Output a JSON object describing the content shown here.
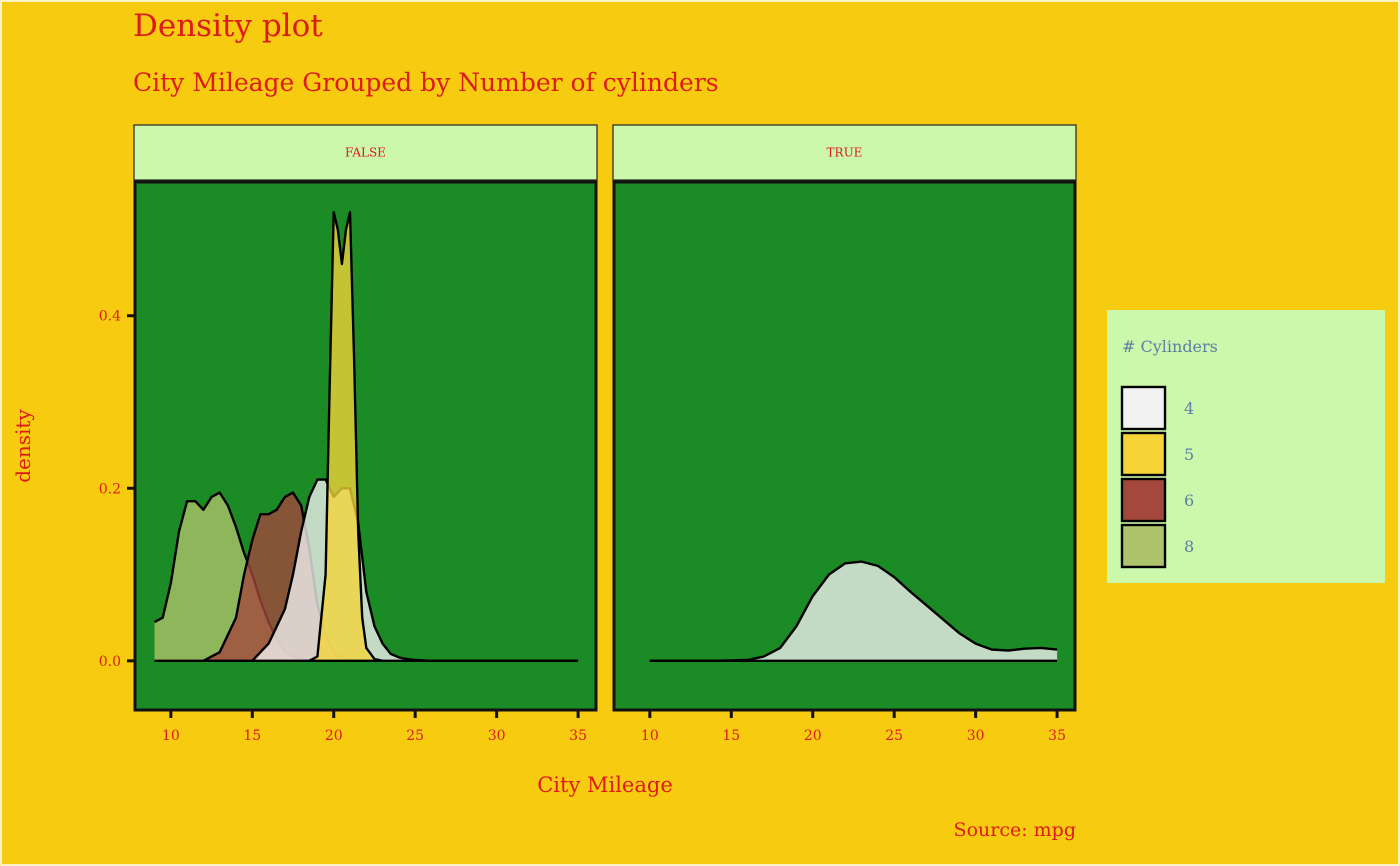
{
  "chart_data": {
    "type": "area",
    "title": "Density plot",
    "subtitle": "City Mileage Grouped by Number of cylinders",
    "caption": "Source: mpg",
    "xlabel": "City Mileage",
    "ylabel": "density",
    "xlim": [
      7.8,
      36.1
    ],
    "ylim": [
      -0.057,
      0.555
    ],
    "x_ticks": [
      10,
      15,
      20,
      25,
      30,
      35
    ],
    "y_ticks": [
      0.0,
      0.2,
      0.4
    ],
    "y_tick_labels": [
      "0.0",
      "0.2",
      "0.4"
    ],
    "legend": {
      "title": "# Cylinders",
      "position": "right",
      "entries": [
        {
          "label": "4",
          "color": "#f2f2f2"
        },
        {
          "label": "5",
          "color": "#f4d437"
        },
        {
          "label": "6",
          "color": "#a4473c"
        },
        {
          "label": "8",
          "color": "#aec46c"
        }
      ]
    },
    "colors": {
      "background": "#f7cb10",
      "panel": "#1b8b25",
      "strip": "#cbf8aa",
      "title_text": "#dd1b1b",
      "legend_text": "#5b7fa8",
      "fill_4": "#f2f2f2",
      "fill_5": "#f4d437",
      "fill_6": "#a4473c",
      "fill_8": "#aec46c"
    },
    "panels": [
      {
        "strip": "FALSE",
        "series": [
          {
            "name": "8",
            "x": [
              9,
              9.5,
              10,
              10.5,
              11,
              11.5,
              12,
              12.5,
              13,
              13.5,
              14,
              14.5,
              15,
              15.5,
              16,
              16.5,
              17,
              17.5,
              18,
              19
            ],
            "y": [
              0.045,
              0.05,
              0.09,
              0.15,
              0.185,
              0.185,
              0.175,
              0.19,
              0.195,
              0.18,
              0.155,
              0.125,
              0.1,
              0.07,
              0.045,
              0.025,
              0.01,
              0.005,
              0.002,
              0
            ]
          },
          {
            "name": "6",
            "x": [
              12,
              13,
              14,
              14.5,
              15,
              15.5,
              16,
              16.5,
              17,
              17.5,
              18,
              18.5,
              19,
              19.5,
              20,
              20.5,
              21
            ],
            "y": [
              0,
              0.01,
              0.05,
              0.1,
              0.14,
              0.17,
              0.17,
              0.175,
              0.19,
              0.195,
              0.18,
              0.13,
              0.065,
              0.03,
              0.01,
              0.005,
              0
            ]
          },
          {
            "name": "4",
            "x": [
              15,
              16,
              17,
              17.5,
              18,
              18.5,
              19,
              19.5,
              20,
              20.5,
              21,
              21.5,
              22,
              22.5,
              23,
              23.5,
              24,
              24.5,
              25,
              26,
              28,
              30,
              33,
              35
            ],
            "y": [
              0,
              0.02,
              0.06,
              0.1,
              0.15,
              0.19,
              0.21,
              0.21,
              0.19,
              0.2,
              0.2,
              0.16,
              0.08,
              0.04,
              0.02,
              0.008,
              0.004,
              0.002,
              0.001,
              0,
              0,
              0,
              0,
              0
            ]
          },
          {
            "name": "5",
            "x": [
              18.5,
              19,
              19.5,
              19.75,
              20,
              20.25,
              20.5,
              20.75,
              21,
              21.25,
              21.5,
              21.75,
              22,
              22.5,
              23
            ],
            "y": [
              0,
              0.005,
              0.1,
              0.32,
              0.52,
              0.5,
              0.46,
              0.5,
              0.52,
              0.35,
              0.15,
              0.05,
              0.015,
              0.002,
              0
            ]
          }
        ]
      },
      {
        "strip": "TRUE",
        "series": [
          {
            "name": "4",
            "x": [
              10,
              14,
              16,
              17,
              18,
              19,
              20,
              21,
              22,
              23,
              24,
              25,
              26,
              27,
              28,
              29,
              30,
              31,
              32,
              33,
              34,
              35
            ],
            "y": [
              0,
              0,
              0.001,
              0.005,
              0.015,
              0.04,
              0.075,
              0.1,
              0.113,
              0.115,
              0.11,
              0.097,
              0.08,
              0.064,
              0.048,
              0.032,
              0.02,
              0.013,
              0.012,
              0.014,
              0.015,
              0.013
            ]
          }
        ]
      }
    ]
  }
}
